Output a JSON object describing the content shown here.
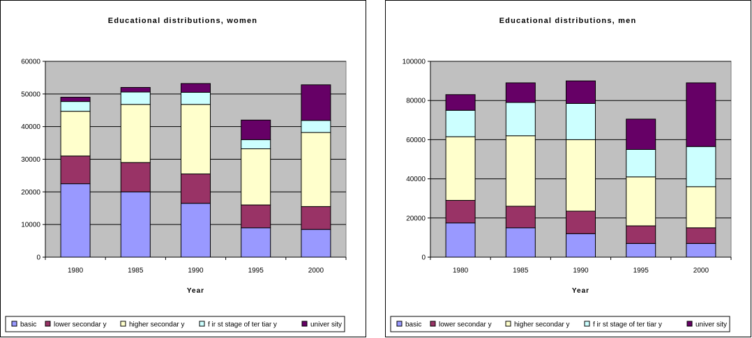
{
  "colors": {
    "basic": "#9999ff",
    "lower secondary": "#993366",
    "higher secondary": "#ffffcc",
    "first stage of tertiary": "#ccffff",
    "university": "#660066",
    "plot_area": "#c0c0c0"
  },
  "chart_data": [
    {
      "type": "bar",
      "stacked": true,
      "title": "Educational distributions, women",
      "xlabel": "Year",
      "ylabel": "",
      "categories": [
        "1980",
        "1985",
        "1990",
        "1995",
        "2000"
      ],
      "ylim": [
        0,
        60000
      ],
      "yticks": [
        0,
        10000,
        20000,
        30000,
        40000,
        50000,
        60000
      ],
      "grid": true,
      "legend_position": "bottom",
      "series": [
        {
          "name": "basic",
          "values": [
            22500,
            20000,
            16500,
            9000,
            8500
          ]
        },
        {
          "name": "lower secondary",
          "values": [
            8500,
            9000,
            9000,
            7000,
            7000
          ]
        },
        {
          "name": "higher secondary",
          "values": [
            13700,
            17800,
            21300,
            17200,
            22700
          ]
        },
        {
          "name": "first stage of tertiary",
          "values": [
            3000,
            3800,
            3700,
            2800,
            3700
          ]
        },
        {
          "name": "university",
          "values": [
            1300,
            1400,
            2700,
            6000,
            10900
          ]
        }
      ],
      "legend_labels": [
        "basic",
        "lower secondar y",
        "higher secondar y",
        "f ir st  stage of  ter tiar y",
        "univer sity"
      ]
    },
    {
      "type": "bar",
      "stacked": true,
      "title": "Educational distributions, men",
      "xlabel": "Year",
      "ylabel": "",
      "categories": [
        "1980",
        "1985",
        "1990",
        "1995",
        "2000"
      ],
      "ylim": [
        0,
        100000
      ],
      "yticks": [
        0,
        20000,
        40000,
        60000,
        80000,
        100000
      ],
      "grid": true,
      "legend_position": "bottom",
      "series": [
        {
          "name": "basic",
          "values": [
            17500,
            15000,
            12000,
            7000,
            7000
          ]
        },
        {
          "name": "lower secondary",
          "values": [
            11500,
            11000,
            11500,
            9000,
            8000
          ]
        },
        {
          "name": "higher secondary",
          "values": [
            32500,
            36000,
            36500,
            25000,
            21000
          ]
        },
        {
          "name": "first stage of tertiary",
          "values": [
            13500,
            17000,
            18500,
            14000,
            20500
          ]
        },
        {
          "name": "university",
          "values": [
            8000,
            10000,
            11500,
            15500,
            32500
          ]
        }
      ],
      "legend_labels": [
        "basic",
        "lower secondar y",
        "higher secondar y",
        "f ir st  stage of  ter tiar y",
        "univer sity"
      ]
    }
  ]
}
